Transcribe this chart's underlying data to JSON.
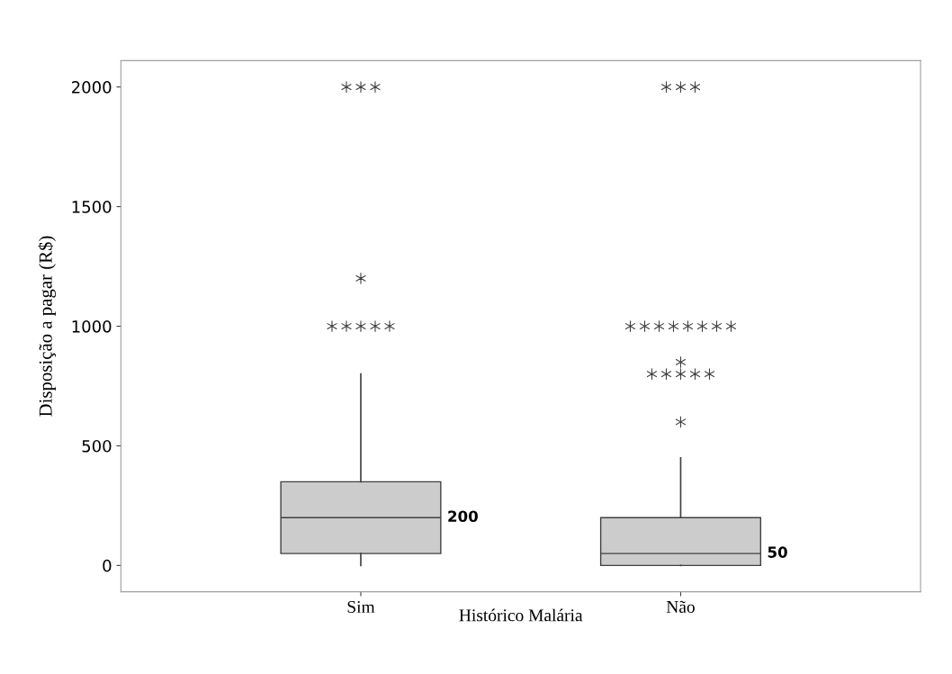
{
  "chart_data": {
    "type": "box",
    "xlabel": "Histórico Malária",
    "ylabel": "Disposição a pagar (R$)",
    "categories": [
      "Sim",
      "Não"
    ],
    "color": "#cccccc",
    "boxes": [
      {
        "low": 0,
        "q1": 50,
        "median": 200,
        "q3": 350,
        "high": 800,
        "outliers": [
          1000,
          1000,
          1000,
          1000,
          1000,
          1200,
          2000,
          2000,
          2000
        ]
      },
      {
        "low": 0,
        "q1": 0,
        "median": 50,
        "q3": 200,
        "high": 450,
        "outliers": [
          600,
          800,
          800,
          800,
          800,
          800,
          850,
          1000,
          1000,
          1000,
          1000,
          1000,
          1000,
          1000,
          1000,
          2000,
          2000,
          2000
        ]
      }
    ],
    "annotations": [
      "200",
      "50"
    ],
    "ylim": [
      -110,
      2110
    ],
    "yticks": [
      0,
      500,
      1000,
      1500,
      2000
    ],
    "grid": false,
    "legend": false
  }
}
